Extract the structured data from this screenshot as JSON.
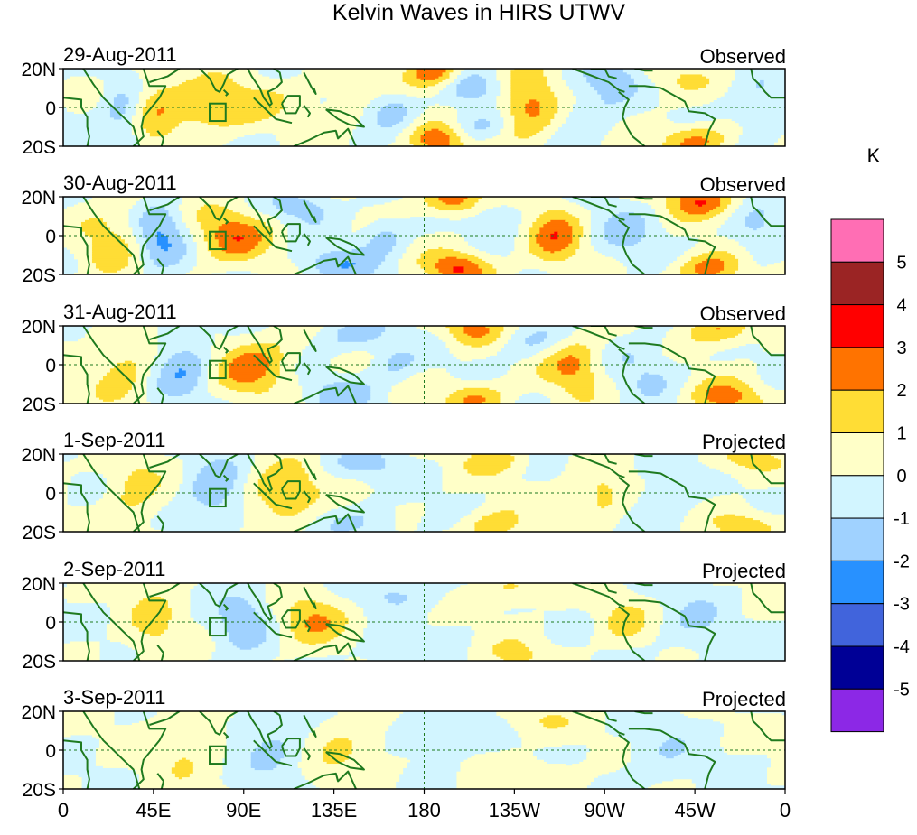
{
  "chart_data": {
    "type": "heatmap",
    "title": "Kelvin Waves in HIRS UTWV",
    "units_label": "K",
    "xlabel": "",
    "ylabel": "",
    "x_ticks": [
      "0",
      "45E",
      "90E",
      "135E",
      "180",
      "135W",
      "90W",
      "45W",
      "0"
    ],
    "x_range_deg_east": [
      0,
      360
    ],
    "y_ticks": [
      "20N",
      "0",
      "20S"
    ],
    "y_range_deg": [
      -20,
      20
    ],
    "colorbar": {
      "levels": [
        -6,
        -5,
        -4,
        -3,
        -2,
        -1,
        0,
        1,
        2,
        3,
        4,
        5,
        6
      ],
      "labels": [
        "5",
        "4",
        "3",
        "2",
        "1",
        "0",
        "-1",
        "-2",
        "-3",
        "-4",
        "-5"
      ],
      "colors": [
        "#ff6eb4",
        "#9b2424",
        "#ff0000",
        "#ff7300",
        "#ffdd35",
        "#ffffc8",
        "#d2f5ff",
        "#a0d2ff",
        "#2891ff",
        "#4164dc",
        "#000096",
        "#8c28e6"
      ]
    },
    "panels": [
      {
        "date": "29-Aug-2011",
        "label": "Observed",
        "intensity": 1.0,
        "blobs": [
          {
            "lon": 45,
            "lat": 0,
            "amp": 1.6,
            "wlon": 10,
            "wlat": 15
          },
          {
            "lon": 30,
            "lat": -5,
            "amp": -1.8,
            "wlon": 8,
            "wlat": 14
          },
          {
            "lon": 72,
            "lat": 0,
            "amp": 2.2,
            "wlon": 14,
            "wlat": 9
          },
          {
            "lon": 100,
            "lat": 5,
            "amp": 0.7,
            "wlon": 12,
            "wlat": 10
          },
          {
            "lon": 140,
            "lat": 5,
            "amp": 0.8,
            "wlon": 15,
            "wlat": 12
          },
          {
            "lon": 163,
            "lat": 0,
            "amp": -1.6,
            "wlon": 9,
            "wlat": 7
          },
          {
            "lon": 185,
            "lat": 18,
            "amp": 3.0,
            "wlon": 9,
            "wlat": 6
          },
          {
            "lon": 187,
            "lat": -17,
            "amp": 3.0,
            "wlon": 10,
            "wlat": 6
          },
          {
            "lon": 205,
            "lat": 10,
            "amp": -1.4,
            "wlon": 12,
            "wlat": 6
          },
          {
            "lon": 205,
            "lat": -10,
            "amp": -1.4,
            "wlon": 12,
            "wlat": 6
          },
          {
            "lon": 232,
            "lat": 0,
            "amp": 2.6,
            "wlon": 11,
            "wlat": 12
          },
          {
            "lon": 262,
            "lat": 0,
            "amp": -1.2,
            "wlon": 12,
            "wlat": 12
          },
          {
            "lon": 275,
            "lat": 15,
            "amp": -1.3,
            "wlon": 9,
            "wlat": 6
          },
          {
            "lon": 305,
            "lat": 15,
            "amp": 0.9,
            "wlon": 12,
            "wlat": 8
          },
          {
            "lon": 315,
            "lat": -17,
            "amp": 2.4,
            "wlon": 12,
            "wlat": 6
          },
          {
            "lon": 345,
            "lat": 0,
            "amp": -1.2,
            "wlon": 10,
            "wlat": 10
          }
        ]
      },
      {
        "date": "30-Aug-2011",
        "label": "Observed",
        "intensity": 1.0,
        "blobs": [
          {
            "lon": 25,
            "lat": 0,
            "amp": 1.4,
            "wlon": 12,
            "wlat": 15
          },
          {
            "lon": 48,
            "lat": 0,
            "amp": -2.2,
            "wlon": 9,
            "wlat": 12
          },
          {
            "lon": 85,
            "lat": 0,
            "amp": 2.5,
            "wlon": 13,
            "wlat": 10
          },
          {
            "lon": 120,
            "lat": 15,
            "amp": -1.5,
            "wlon": 12,
            "wlat": 6
          },
          {
            "lon": 135,
            "lat": -15,
            "amp": -1.7,
            "wlon": 14,
            "wlat": 6
          },
          {
            "lon": 160,
            "lat": 0,
            "amp": -1.5,
            "wlon": 8,
            "wlat": 7
          },
          {
            "lon": 195,
            "lat": 18,
            "amp": 3.0,
            "wlon": 11,
            "wlat": 6
          },
          {
            "lon": 197,
            "lat": -17,
            "amp": 3.0,
            "wlon": 11,
            "wlat": 6
          },
          {
            "lon": 215,
            "lat": 12,
            "amp": -1.2,
            "wlon": 14,
            "wlat": 6
          },
          {
            "lon": 245,
            "lat": 0,
            "amp": 2.4,
            "wlon": 10,
            "wlat": 12
          },
          {
            "lon": 280,
            "lat": 0,
            "amp": -1.1,
            "wlon": 12,
            "wlat": 12
          },
          {
            "lon": 318,
            "lat": 18,
            "amp": 2.8,
            "wlon": 12,
            "wlat": 6
          },
          {
            "lon": 322,
            "lat": -17,
            "amp": 2.6,
            "wlon": 12,
            "wlat": 6
          },
          {
            "lon": 345,
            "lat": 0,
            "amp": -1.2,
            "wlon": 10,
            "wlat": 10
          }
        ]
      },
      {
        "date": "31-Aug-2011",
        "label": "Observed",
        "intensity": 1.0,
        "blobs": [
          {
            "lon": 30,
            "lat": 0,
            "amp": 1.5,
            "wlon": 10,
            "wlat": 15
          },
          {
            "lon": 60,
            "lat": 0,
            "amp": -1.9,
            "wlon": 10,
            "wlat": 12
          },
          {
            "lon": 95,
            "lat": 0,
            "amp": 2.6,
            "wlon": 13,
            "wlat": 10
          },
          {
            "lon": 145,
            "lat": 15,
            "amp": -1.4,
            "wlon": 14,
            "wlat": 6
          },
          {
            "lon": 140,
            "lat": -15,
            "amp": -1.3,
            "wlon": 14,
            "wlat": 6
          },
          {
            "lon": 165,
            "lat": 0,
            "amp": -1.2,
            "wlon": 8,
            "wlat": 6
          },
          {
            "lon": 205,
            "lat": 18,
            "amp": 2.2,
            "wlon": 11,
            "wlat": 6
          },
          {
            "lon": 205,
            "lat": -17,
            "amp": 2.2,
            "wlon": 11,
            "wlat": 6
          },
          {
            "lon": 230,
            "lat": 12,
            "amp": -1.1,
            "wlon": 14,
            "wlat": 6
          },
          {
            "lon": 255,
            "lat": 0,
            "amp": 2.3,
            "wlon": 10,
            "wlat": 10
          },
          {
            "lon": 290,
            "lat": 0,
            "amp": -1.0,
            "wlon": 12,
            "wlat": 12
          },
          {
            "lon": 328,
            "lat": 18,
            "amp": 2.2,
            "wlon": 12,
            "wlat": 6
          },
          {
            "lon": 330,
            "lat": -17,
            "amp": 2.4,
            "wlon": 12,
            "wlat": 6
          }
        ]
      },
      {
        "date": "1-Sep-2011",
        "label": "Projected",
        "intensity": 0.85,
        "blobs": [
          {
            "lon": 35,
            "lat": 0,
            "amp": 1.3,
            "wlon": 10,
            "wlat": 15
          },
          {
            "lon": 75,
            "lat": 0,
            "amp": -1.8,
            "wlon": 10,
            "wlat": 12
          },
          {
            "lon": 110,
            "lat": 0,
            "amp": 2.4,
            "wlon": 12,
            "wlat": 10
          },
          {
            "lon": 150,
            "lat": 15,
            "amp": -1.2,
            "wlon": 14,
            "wlat": 6
          },
          {
            "lon": 150,
            "lat": -15,
            "amp": -1.1,
            "wlon": 14,
            "wlat": 6
          },
          {
            "lon": 215,
            "lat": 17,
            "amp": 1.6,
            "wlon": 11,
            "wlat": 6
          },
          {
            "lon": 215,
            "lat": -17,
            "amp": 1.7,
            "wlon": 11,
            "wlat": 6
          },
          {
            "lon": 268,
            "lat": 0,
            "amp": 1.6,
            "wlon": 10,
            "wlat": 10
          },
          {
            "lon": 300,
            "lat": 0,
            "amp": -1.0,
            "wlon": 12,
            "wlat": 12
          },
          {
            "lon": 340,
            "lat": 17,
            "amp": 1.5,
            "wlon": 12,
            "wlat": 6
          },
          {
            "lon": 340,
            "lat": -17,
            "amp": 1.6,
            "wlon": 12,
            "wlat": 6
          }
        ]
      },
      {
        "date": "2-Sep-2011",
        "label": "Projected",
        "intensity": 0.7,
        "blobs": [
          {
            "lon": 45,
            "lat": 0,
            "amp": 1.2,
            "wlon": 10,
            "wlat": 15
          },
          {
            "lon": 90,
            "lat": 0,
            "amp": -1.6,
            "wlon": 10,
            "wlat": 12
          },
          {
            "lon": 125,
            "lat": 0,
            "amp": 1.9,
            "wlon": 12,
            "wlat": 10
          },
          {
            "lon": 165,
            "lat": 15,
            "amp": -1.1,
            "wlon": 14,
            "wlat": 6
          },
          {
            "lon": 165,
            "lat": -15,
            "amp": -1.0,
            "wlon": 14,
            "wlat": 6
          },
          {
            "lon": 225,
            "lat": 17,
            "amp": 1.3,
            "wlon": 11,
            "wlat": 6
          },
          {
            "lon": 225,
            "lat": -17,
            "amp": 1.3,
            "wlon": 11,
            "wlat": 6
          },
          {
            "lon": 280,
            "lat": 0,
            "amp": 1.4,
            "wlon": 9,
            "wlat": 8
          },
          {
            "lon": 315,
            "lat": 0,
            "amp": -1.0,
            "wlon": 12,
            "wlat": 12
          }
        ]
      },
      {
        "date": "3-Sep-2011",
        "label": "Projected",
        "intensity": 0.55,
        "blobs": [
          {
            "lon": 60,
            "lat": 0,
            "amp": 1.0,
            "wlon": 12,
            "wlat": 15
          },
          {
            "lon": 105,
            "lat": 0,
            "amp": -1.3,
            "wlon": 12,
            "wlat": 12
          },
          {
            "lon": 140,
            "lat": 0,
            "amp": 1.2,
            "wlon": 14,
            "wlat": 12
          },
          {
            "lon": 185,
            "lat": 12,
            "amp": -1.0,
            "wlon": 14,
            "wlat": 8
          },
          {
            "lon": 240,
            "lat": 15,
            "amp": 1.0,
            "wlon": 12,
            "wlat": 6
          },
          {
            "lon": 240,
            "lat": -15,
            "amp": 1.0,
            "wlon": 12,
            "wlat": 6
          },
          {
            "lon": 300,
            "lat": 0,
            "amp": -0.9,
            "wlon": 12,
            "wlat": 12
          }
        ]
      }
    ]
  }
}
